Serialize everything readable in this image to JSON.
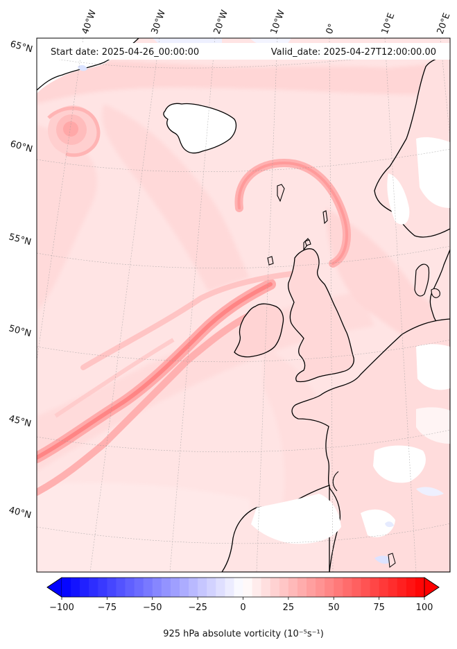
{
  "header": {
    "start_date": "Start date: 2025-04-26_00:00:00",
    "valid_date": "Valid_date: 2025-04-27T12:00:00.00"
  },
  "map": {
    "projection": "lambert-conformal",
    "longitude_labels": [
      "40°W",
      "30°W",
      "20°W",
      "10°W",
      "0°",
      "10°E",
      "20°E"
    ],
    "latitude_labels": [
      "65°N",
      "60°N",
      "55°N",
      "50°N",
      "45°N",
      "40°N"
    ],
    "gridlines": "dotted-grey",
    "coastline_color": "#000000"
  },
  "colorbar": {
    "colormap": "bwr",
    "min": -100,
    "max": 100,
    "extend": "both",
    "low_color": "#0000ff",
    "mid_color": "#ffffff",
    "high_color": "#ff0000",
    "ticks": [
      -100,
      -75,
      -50,
      -25,
      0,
      25,
      50,
      75,
      100
    ],
    "tick_labels": [
      "−100",
      "−75",
      "−50",
      "−25",
      "0",
      "25",
      "50",
      "75",
      "100"
    ],
    "label": "925 hPa absolute vorticity (10⁻⁵s⁻¹)"
  }
}
